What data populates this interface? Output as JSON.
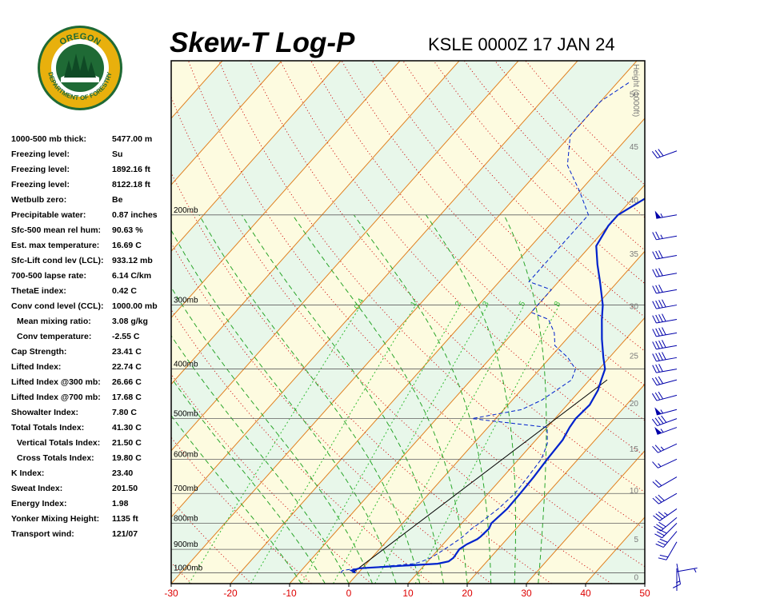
{
  "header": {
    "title": "Skew-T Log-P",
    "station": "KSLE 0000Z 17 JAN 24"
  },
  "logo": {
    "top_text": "OREGON",
    "ring_text": "DEPARTMENT OF FORESTRY",
    "colors": {
      "ring": "#e8b00d",
      "inner": "#1f6a35",
      "trees": "#0f4a25"
    }
  },
  "indices": [
    {
      "label": "1000-500 mb thick:",
      "value": "5477.00 m"
    },
    {
      "label": "Freezing level:",
      "value": "Su"
    },
    {
      "label": "Freezing level:",
      "value": "1892.16 ft"
    },
    {
      "label": "Freezing level:",
      "value": "8122.18 ft"
    },
    {
      "label": "Wetbulb zero:",
      "value": "Be"
    },
    {
      "label": "Precipitable water:",
      "value": "0.87 inches"
    },
    {
      "label": "Sfc-500 mean rel hum:",
      "value": "90.63 %"
    },
    {
      "label": "Est. max temperature:",
      "value": "16.69 C"
    },
    {
      "label": "Sfc-Lift cond lev (LCL):",
      "value": "933.12 mb"
    },
    {
      "label": "700-500 lapse rate:",
      "value": "6.14 C/km"
    },
    {
      "label": "ThetaE index:",
      "value": "0.42 C"
    },
    {
      "label": "Conv cond level (CCL):",
      "value": "1000.00 mb"
    },
    {
      "label": "Mean mixing ratio:",
      "value": "3.08 g/kg",
      "indent": true
    },
    {
      "label": "Conv temperature:",
      "value": "-2.55 C",
      "indent": true
    },
    {
      "label": "Cap Strength:",
      "value": "23.41 C"
    },
    {
      "label": "Lifted Index:",
      "value": "22.74 C"
    },
    {
      "label": "Lifted Index @300 mb:",
      "value": "26.66 C"
    },
    {
      "label": "Lifted Index @700 mb:",
      "value": "17.68 C"
    },
    {
      "label": "Showalter Index:",
      "value": "7.80 C"
    },
    {
      "label": "Total Totals Index:",
      "value": "41.30 C"
    },
    {
      "label": "Vertical Totals Index:",
      "value": "21.50 C",
      "indent": true
    },
    {
      "label": "Cross Totals Index:",
      "value": "19.80 C",
      "indent": true
    },
    {
      "label": "K Index:",
      "value": "23.40"
    },
    {
      "label": "Sweat Index:",
      "value": "201.50"
    },
    {
      "label": "Energy Index:",
      "value": "1.98"
    },
    {
      "label": "Yonker Mixing Height:",
      "value": "1135 ft"
    },
    {
      "label": "Transport wind:",
      "value": "121/07"
    }
  ],
  "chart_data": {
    "type": "line",
    "title": "Skew-T Log-P",
    "xlabel": "",
    "ylabel": "",
    "x_range": [
      -30,
      50
    ],
    "x_ticks": [
      -30,
      -20,
      -10,
      0,
      10,
      20,
      30,
      40,
      50
    ],
    "pressure_range_mb": [
      1050,
      100
    ],
    "pressure_labels": [
      {
        "p": 1000,
        "label": "1000mb"
      },
      {
        "p": 900,
        "label": "900mb"
      },
      {
        "p": 800,
        "label": "800mb"
      },
      {
        "p": 700,
        "label": "700mb"
      },
      {
        "p": 600,
        "label": "600mb"
      },
      {
        "p": 500,
        "label": "500mb"
      },
      {
        "p": 400,
        "label": "400mb"
      },
      {
        "p": 300,
        "label": "300mb"
      },
      {
        "p": 200,
        "label": "200mb"
      }
    ],
    "height_axis": {
      "label": "Height (1000ft)",
      "ticks": [
        {
          "label": "0",
          "p": 1018
        },
        {
          "label": "5",
          "p": 858
        },
        {
          "label": "10",
          "p": 690
        },
        {
          "label": "15",
          "p": 572
        },
        {
          "label": "20",
          "p": 466
        },
        {
          "label": "25",
          "p": 376
        },
        {
          "label": "30",
          "p": 301
        },
        {
          "label": "35",
          "p": 238
        },
        {
          "label": "40",
          "p": 187
        },
        {
          "label": "45",
          "p": 147
        },
        {
          "label": "50",
          "p": 116
        }
      ]
    },
    "mixing_ratio_labels": [
      "0.4",
      "1",
      "2",
      "3",
      "5",
      "8"
    ],
    "mixing_ratio_values": [
      0.4,
      1,
      2,
      3,
      5,
      8
    ],
    "mixing_ratio_label_p": 300,
    "isotherm_step_C": 10,
    "dry_adiabats_theta_C": [
      -30,
      -20,
      -10,
      0,
      10,
      20,
      30,
      40,
      50,
      60,
      70,
      80,
      90,
      100,
      110,
      120,
      130,
      140,
      150,
      160
    ],
    "moist_adiabats_C": [
      -8,
      -4,
      0,
      4,
      8,
      12,
      16,
      20,
      24,
      28,
      32
    ],
    "series": [
      {
        "name": "",
        "kind": "temperature",
        "color": "#0022cc",
        "points": [
          [
            1000,
            -0.5
          ],
          [
            990,
            -1.5
          ],
          [
            980,
            -0.5
          ],
          [
            960,
            12
          ],
          [
            950,
            13.5
          ],
          [
            935,
            13.8
          ],
          [
            900,
            13.5
          ],
          [
            880,
            14
          ],
          [
            860,
            15
          ],
          [
            850,
            15.2
          ],
          [
            820,
            15.4
          ],
          [
            800,
            15
          ],
          [
            750,
            15.5
          ],
          [
            700,
            15.4
          ],
          [
            650,
            15.2
          ],
          [
            600,
            14.8
          ],
          [
            550,
            14.5
          ],
          [
            520,
            13.8
          ],
          [
            500,
            13.5
          ],
          [
            470,
            13.8
          ],
          [
            440,
            13
          ],
          [
            420,
            12
          ],
          [
            400,
            11
          ],
          [
            380,
            9
          ],
          [
            350,
            6
          ],
          [
            320,
            3
          ],
          [
            300,
            1
          ],
          [
            270,
            -3
          ],
          [
            250,
            -6
          ],
          [
            230,
            -9
          ],
          [
            210,
            -10
          ],
          [
            200,
            -10
          ],
          [
            180,
            -7
          ],
          [
            150,
            -1
          ],
          [
            130,
            7
          ],
          [
            120,
            12
          ],
          [
            110,
            14
          ]
        ]
      },
      {
        "name": "",
        "kind": "dewpoint",
        "color": "#0022cc",
        "points": [
          [
            1000,
            -3
          ],
          [
            990,
            -3
          ],
          [
            985,
            -2
          ],
          [
            960,
            8
          ],
          [
            950,
            9
          ],
          [
            935,
            10
          ],
          [
            900,
            11
          ],
          [
            880,
            11.5
          ],
          [
            860,
            12
          ],
          [
            850,
            12.2
          ],
          [
            820,
            12.5
          ],
          [
            800,
            13
          ],
          [
            750,
            14
          ],
          [
            700,
            14.5
          ],
          [
            650,
            14.2
          ],
          [
            600,
            13.8
          ],
          [
            560,
            12.5
          ],
          [
            520,
            10
          ],
          [
            500,
            -4
          ],
          [
            480,
            3
          ],
          [
            460,
            5
          ],
          [
            420,
            7
          ],
          [
            400,
            6
          ],
          [
            380,
            3
          ],
          [
            360,
            -1
          ],
          [
            340,
            -3
          ],
          [
            320,
            -6
          ],
          [
            310,
            -10
          ],
          [
            300,
            -10
          ],
          [
            280,
            -10
          ],
          [
            270,
            -15
          ],
          [
            250,
            -15
          ],
          [
            240,
            -15
          ],
          [
            220,
            -15
          ],
          [
            200,
            -15
          ],
          [
            180,
            -20
          ],
          [
            160,
            -26
          ],
          [
            140,
            -30
          ],
          [
            120,
            -30
          ],
          [
            110,
            -28
          ]
        ]
      }
    ],
    "wind_barbs": [
      {
        "p": 995,
        "dir": 80,
        "kt": 7
      },
      {
        "p": 960,
        "dir": 170,
        "kt": 15
      },
      {
        "p": 870,
        "dir": 210,
        "kt": 20
      },
      {
        "p": 830,
        "dir": 220,
        "kt": 30
      },
      {
        "p": 800,
        "dir": 225,
        "kt": 30
      },
      {
        "p": 780,
        "dir": 230,
        "kt": 30
      },
      {
        "p": 750,
        "dir": 235,
        "kt": 35
      },
      {
        "p": 700,
        "dir": 240,
        "kt": 30
      },
      {
        "p": 650,
        "dir": 240,
        "kt": 20
      },
      {
        "p": 600,
        "dir": 245,
        "kt": 15
      },
      {
        "p": 560,
        "dir": 245,
        "kt": 25
      },
      {
        "p": 520,
        "dir": 250,
        "kt": 55
      },
      {
        "p": 500,
        "dir": 250,
        "kt": 40
      },
      {
        "p": 480,
        "dir": 255,
        "kt": 55
      },
      {
        "p": 450,
        "dir": 255,
        "kt": 30
      },
      {
        "p": 420,
        "dir": 255,
        "kt": 30
      },
      {
        "p": 400,
        "dir": 260,
        "kt": 30
      },
      {
        "p": 380,
        "dir": 260,
        "kt": 40
      },
      {
        "p": 360,
        "dir": 260,
        "kt": 40
      },
      {
        "p": 340,
        "dir": 260,
        "kt": 40
      },
      {
        "p": 320,
        "dir": 260,
        "kt": 40
      },
      {
        "p": 300,
        "dir": 260,
        "kt": 40
      },
      {
        "p": 280,
        "dir": 260,
        "kt": 30
      },
      {
        "p": 260,
        "dir": 260,
        "kt": 30
      },
      {
        "p": 240,
        "dir": 260,
        "kt": 30
      },
      {
        "p": 220,
        "dir": 260,
        "kt": 25
      },
      {
        "p": 200,
        "dir": 260,
        "kt": 55
      },
      {
        "p": 150,
        "dir": 250,
        "kt": 30
      }
    ],
    "parcel_path_color": "#000000",
    "colors": {
      "temperature_label": "#dd0000",
      "isotherms": "#e08020",
      "dry_adiabats": "#cc0000",
      "moist_adiabats": "#2aa52a",
      "mixing_ratio": "#33bb33",
      "isobars": "#606060",
      "band_yellow": "#fdfbe0",
      "band_green": "#e8f7ea",
      "height_text": "#7a7a7a"
    }
  }
}
